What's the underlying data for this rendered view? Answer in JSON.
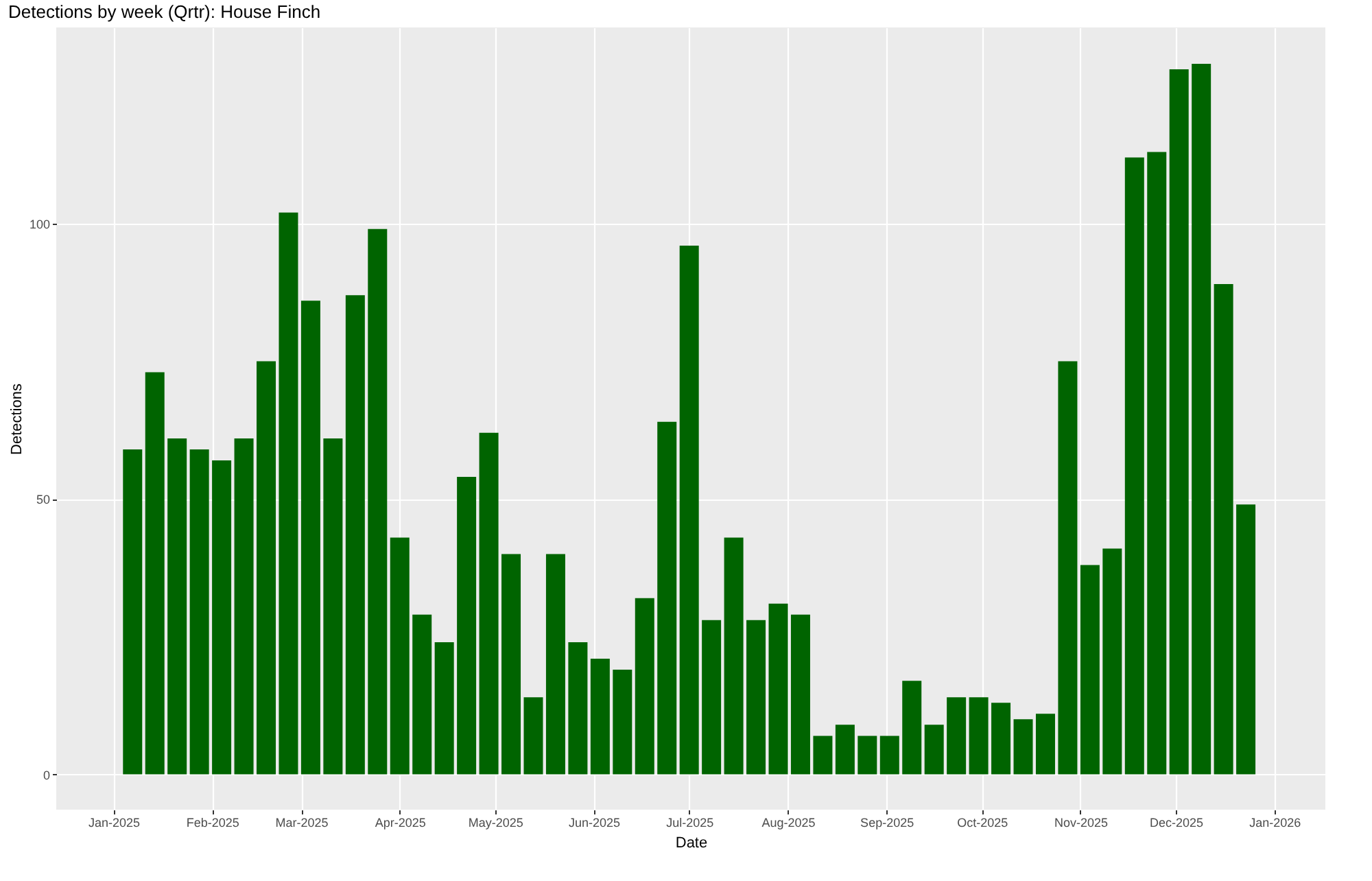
{
  "chart_data": {
    "type": "bar",
    "title": "Detections by week (Qrtr): House Finch",
    "xlabel": "Date",
    "ylabel": "Detections",
    "x": [
      "2025-01-07",
      "2025-01-14",
      "2025-01-21",
      "2025-01-28",
      "2025-02-04",
      "2025-02-11",
      "2025-02-18",
      "2025-02-25",
      "2025-03-04",
      "2025-03-11",
      "2025-03-18",
      "2025-03-25",
      "2025-04-01",
      "2025-04-08",
      "2025-04-15",
      "2025-04-22",
      "2025-04-29",
      "2025-05-06",
      "2025-05-13",
      "2025-05-20",
      "2025-05-27",
      "2025-06-03",
      "2025-06-10",
      "2025-06-17",
      "2025-06-24",
      "2025-07-01",
      "2025-07-08",
      "2025-07-15",
      "2025-07-22",
      "2025-07-29",
      "2025-08-05",
      "2025-08-12",
      "2025-08-19",
      "2025-08-26",
      "2025-09-02",
      "2025-09-09",
      "2025-09-16",
      "2025-09-23",
      "2025-09-30",
      "2025-10-07",
      "2025-10-14",
      "2025-10-21",
      "2025-10-28",
      "2025-11-04",
      "2025-11-11",
      "2025-11-18",
      "2025-11-25",
      "2025-12-02",
      "2025-12-09",
      "2025-12-16",
      "2025-12-23"
    ],
    "values": [
      59,
      73,
      61,
      59,
      57,
      61,
      75,
      102,
      86,
      61,
      87,
      99,
      43,
      29,
      24,
      54,
      62,
      40,
      14,
      40,
      24,
      21,
      19,
      32,
      64,
      96,
      28,
      43,
      28,
      31,
      29,
      7,
      9,
      7,
      7,
      17,
      9,
      14,
      14,
      13,
      10,
      11,
      75,
      38,
      41,
      112,
      113,
      128,
      129,
      89,
      49
    ],
    "color": "#006400",
    "xlim": [
      "2024-12-14",
      "2026-01-17"
    ],
    "xticks": [
      {
        "value": "2025-01-01",
        "label": "Jan-2025"
      },
      {
        "value": "2025-02-01",
        "label": "Feb-2025"
      },
      {
        "value": "2025-03-01",
        "label": "Mar-2025"
      },
      {
        "value": "2025-04-01",
        "label": "Apr-2025"
      },
      {
        "value": "2025-05-01",
        "label": "May-2025"
      },
      {
        "value": "2025-06-01",
        "label": "Jun-2025"
      },
      {
        "value": "2025-07-01",
        "label": "Jul-2025"
      },
      {
        "value": "2025-08-01",
        "label": "Aug-2025"
      },
      {
        "value": "2025-09-01",
        "label": "Sep-2025"
      },
      {
        "value": "2025-10-01",
        "label": "Oct-2025"
      },
      {
        "value": "2025-11-01",
        "label": "Nov-2025"
      },
      {
        "value": "2025-12-01",
        "label": "Dec-2025"
      },
      {
        "value": "2026-01-01",
        "label": "Jan-2026"
      }
    ],
    "ylim": [
      -6.4,
      135.6
    ],
    "yticks": [
      0,
      50,
      100
    ],
    "grid": true,
    "legend": false
  }
}
